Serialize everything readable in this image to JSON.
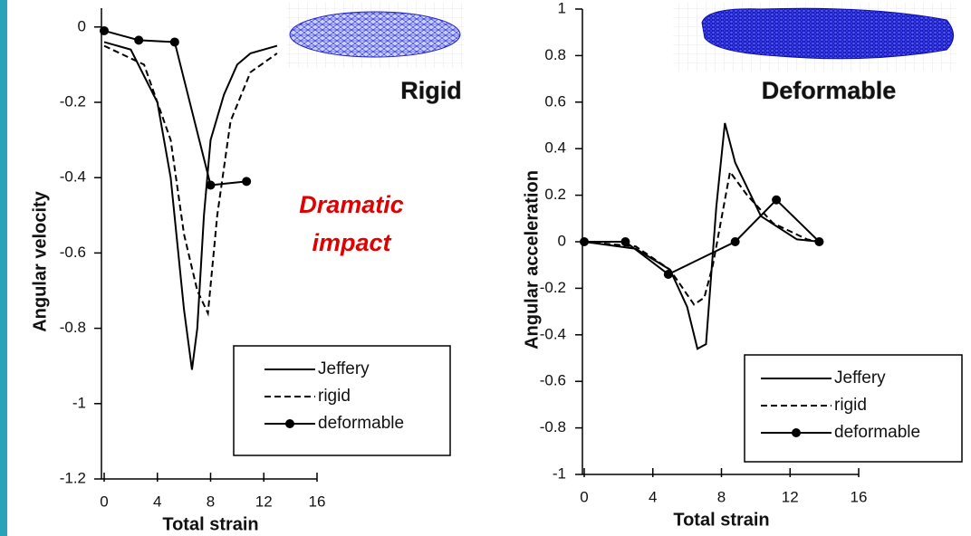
{
  "chart_data": [
    {
      "type": "line",
      "ylabel": "Angular velocity",
      "xlabel": "Total strain",
      "xlim": [
        0,
        16
      ],
      "xticks": [
        0,
        4,
        8,
        12,
        16
      ],
      "ylim": [
        -1.2,
        0.05
      ],
      "yticks": [
        0,
        -0.2,
        -0.4,
        -0.6,
        -0.8,
        -1,
        -1.2
      ],
      "legend": "lower right",
      "series": [
        {
          "name": "Jeffery",
          "color": "#000000",
          "style": "solid",
          "marker": false,
          "x": [
            0,
            2,
            4,
            5,
            6,
            6.6,
            7,
            7.5,
            8,
            9,
            10,
            11,
            13
          ],
          "values": [
            -0.04,
            -0.06,
            -0.2,
            -0.4,
            -0.75,
            -0.91,
            -0.8,
            -0.5,
            -0.3,
            -0.18,
            -0.1,
            -0.07,
            -0.05
          ]
        },
        {
          "name": "rigid",
          "color": "#000000",
          "style": "dashed",
          "marker": false,
          "x": [
            0,
            3,
            4,
            5,
            6,
            7,
            7.8,
            8.5,
            9.5,
            11,
            13
          ],
          "values": [
            -0.05,
            -0.1,
            -0.2,
            -0.3,
            -0.55,
            -0.7,
            -0.76,
            -0.5,
            -0.25,
            -0.12,
            -0.07
          ]
        },
        {
          "name": "deformable",
          "color": "#000000",
          "style": "solid",
          "marker": true,
          "x": [
            0,
            2.6,
            5.3,
            8,
            10.7
          ],
          "values": [
            -0.01,
            -0.035,
            -0.04,
            -0.42,
            -0.41
          ]
        }
      ]
    },
    {
      "type": "line",
      "ylabel": "Angular acceleration",
      "xlabel": "Total strain",
      "xlim": [
        0,
        16
      ],
      "xticks": [
        0,
        4,
        8,
        12,
        16
      ],
      "ylim": [
        -1,
        1
      ],
      "yticks": [
        1,
        0.8,
        0.6,
        0.4,
        0.2,
        0,
        -0.2,
        -0.4,
        -0.6,
        -0.8,
        -1
      ],
      "legend": "lower right",
      "series": [
        {
          "name": "Jeffery",
          "color": "#000000",
          "style": "solid",
          "marker": false,
          "x": [
            0,
            3,
            5,
            6,
            6.6,
            7.1,
            7.7,
            8.2,
            8.8,
            10.3,
            12.4,
            13.8
          ],
          "values": [
            0,
            -0.03,
            -0.12,
            -0.28,
            -0.46,
            -0.44,
            0.15,
            0.51,
            0.34,
            0.11,
            0.01,
            0
          ]
        },
        {
          "name": "rigid",
          "color": "#000000",
          "style": "dashed",
          "marker": false,
          "x": [
            0,
            3,
            5,
            6.4,
            7,
            7.5,
            8.5,
            9.5,
            11,
            13,
            13.8
          ],
          "values": [
            0,
            -0.02,
            -0.12,
            -0.27,
            -0.24,
            -0.1,
            0.3,
            0.2,
            0.08,
            0.01,
            0
          ]
        },
        {
          "name": "deformable",
          "color": "#000000",
          "style": "solid",
          "marker": true,
          "x": [
            0,
            2.4,
            4.9,
            8.8,
            11.2,
            13.7
          ],
          "values": [
            0,
            0,
            -0.14,
            0,
            0.18,
            0
          ]
        }
      ]
    }
  ],
  "annotations": {
    "rigid_label": "Rigid",
    "deformable_label": "Deformable",
    "impact_line1": "Dramatic",
    "impact_line2": "impact"
  }
}
